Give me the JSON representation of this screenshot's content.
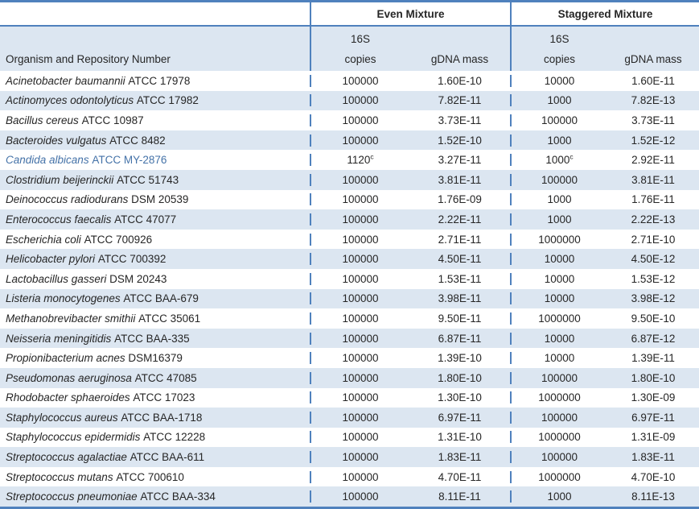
{
  "table": {
    "group_headers": {
      "even": "Even Mixture",
      "staggered": "Staggered Mixture"
    },
    "column_headers": {
      "organism": "Organism and Repository Number",
      "copies_line1": "16S",
      "copies_line2": "copies",
      "gdna_mass_even": "gDNA mass",
      "gdna_mass_staggered": "gDNA mass",
      "copies_line1_staggered": "16S",
      "copies_line2_staggered": "copies"
    },
    "colors": {
      "border_blue": "#4F81BD",
      "band_blue": "#DCE6F1",
      "highlight_text": "#4472A8",
      "text": "#262626"
    },
    "rows": [
      {
        "species": "Acinetobacter baumannii",
        "repository": "ATCC 17978",
        "even_copies": "100000",
        "even_copies_sup": "",
        "even_gdna": "1.60E-10",
        "stag_copies": "10000",
        "stag_copies_sup": "",
        "stag_gdna": "1.60E-11",
        "highlight": false
      },
      {
        "species": "Actinomyces odontolyticus",
        "repository": "ATCC 17982",
        "even_copies": "100000",
        "even_copies_sup": "",
        "even_gdna": "7.82E-11",
        "stag_copies": "1000",
        "stag_copies_sup": "",
        "stag_gdna": "7.82E-13",
        "highlight": false
      },
      {
        "species": "Bacillus cereus",
        "repository": "ATCC 10987",
        "even_copies": "100000",
        "even_copies_sup": "",
        "even_gdna": "3.73E-11",
        "stag_copies": "100000",
        "stag_copies_sup": "",
        "stag_gdna": "3.73E-11",
        "highlight": false
      },
      {
        "species": "Bacteroides vulgatus",
        "repository": "ATCC 8482",
        "even_copies": "100000",
        "even_copies_sup": "",
        "even_gdna": "1.52E-10",
        "stag_copies": "1000",
        "stag_copies_sup": "",
        "stag_gdna": "1.52E-12",
        "highlight": false
      },
      {
        "species": "Candida albicans",
        "repository": "ATCC MY-2876",
        "even_copies": "1120",
        "even_copies_sup": "c",
        "even_gdna": "3.27E-11",
        "stag_copies": "1000",
        "stag_copies_sup": "c",
        "stag_gdna": "2.92E-11",
        "highlight": true
      },
      {
        "species": "Clostridium beijerinckii",
        "repository": "ATCC 51743",
        "even_copies": "100000",
        "even_copies_sup": "",
        "even_gdna": "3.81E-11",
        "stag_copies": "100000",
        "stag_copies_sup": "",
        "stag_gdna": "3.81E-11",
        "highlight": false
      },
      {
        "species": "Deinococcus radiodurans",
        "repository": "DSM 20539",
        "even_copies": "100000",
        "even_copies_sup": "",
        "even_gdna": "1.76E-09",
        "stag_copies": "1000",
        "stag_copies_sup": "",
        "stag_gdna": "1.76E-11",
        "highlight": false
      },
      {
        "species": "Enterococcus faecalis",
        "repository": "ATCC 47077",
        "even_copies": "100000",
        "even_copies_sup": "",
        "even_gdna": "2.22E-11",
        "stag_copies": "1000",
        "stag_copies_sup": "",
        "stag_gdna": "2.22E-13",
        "highlight": false
      },
      {
        "species": "Escherichia coli",
        "repository": "ATCC 700926",
        "even_copies": "100000",
        "even_copies_sup": "",
        "even_gdna": "2.71E-11",
        "stag_copies": "1000000",
        "stag_copies_sup": "",
        "stag_gdna": "2.71E-10",
        "highlight": false
      },
      {
        "species": "Helicobacter pylori",
        "repository": "ATCC 700392",
        "even_copies": "100000",
        "even_copies_sup": "",
        "even_gdna": "4.50E-11",
        "stag_copies": "10000",
        "stag_copies_sup": "",
        "stag_gdna": "4.50E-12",
        "highlight": false
      },
      {
        "species": "Lactobacillus gasseri",
        "repository": "DSM 20243",
        "even_copies": "100000",
        "even_copies_sup": "",
        "even_gdna": "1.53E-11",
        "stag_copies": "10000",
        "stag_copies_sup": "",
        "stag_gdna": "1.53E-12",
        "highlight": false
      },
      {
        "species": "Listeria monocytogenes",
        "repository": "ATCC BAA-679",
        "even_copies": "100000",
        "even_copies_sup": "",
        "even_gdna": "3.98E-11",
        "stag_copies": "10000",
        "stag_copies_sup": "",
        "stag_gdna": "3.98E-12",
        "highlight": false
      },
      {
        "species": "Methanobrevibacter smithii",
        "repository": "ATCC 35061",
        "even_copies": "100000",
        "even_copies_sup": "",
        "even_gdna": "9.50E-11",
        "stag_copies": "1000000",
        "stag_copies_sup": "",
        "stag_gdna": "9.50E-10",
        "highlight": false
      },
      {
        "species": "Neisseria meningitidis",
        "repository": "ATCC BAA-335",
        "even_copies": "100000",
        "even_copies_sup": "",
        "even_gdna": "6.87E-11",
        "stag_copies": "10000",
        "stag_copies_sup": "",
        "stag_gdna": "6.87E-12",
        "highlight": false
      },
      {
        "species": "Propionibacterium acnes",
        "repository": "DSM16379",
        "even_copies": "100000",
        "even_copies_sup": "",
        "even_gdna": "1.39E-10",
        "stag_copies": "10000",
        "stag_copies_sup": "",
        "stag_gdna": "1.39E-11",
        "highlight": false
      },
      {
        "species": "Pseudomonas aeruginosa",
        "repository": "ATCC 47085",
        "even_copies": "100000",
        "even_copies_sup": "",
        "even_gdna": "1.80E-10",
        "stag_copies": "100000",
        "stag_copies_sup": "",
        "stag_gdna": "1.80E-10",
        "highlight": false
      },
      {
        "species": "Rhodobacter sphaeroides",
        "repository": "ATCC 17023",
        "even_copies": "100000",
        "even_copies_sup": "",
        "even_gdna": "1.30E-10",
        "stag_copies": "1000000",
        "stag_copies_sup": "",
        "stag_gdna": "1.30E-09",
        "highlight": false
      },
      {
        "species": "Staphylococcus aureus",
        "repository": "ATCC BAA-1718",
        "even_copies": "100000",
        "even_copies_sup": "",
        "even_gdna": "6.97E-11",
        "stag_copies": "100000",
        "stag_copies_sup": "",
        "stag_gdna": "6.97E-11",
        "highlight": false
      },
      {
        "species": "Staphylococcus epidermidis",
        "repository": "ATCC 12228",
        "even_copies": "100000",
        "even_copies_sup": "",
        "even_gdna": "1.31E-10",
        "stag_copies": "1000000",
        "stag_copies_sup": "",
        "stag_gdna": "1.31E-09",
        "highlight": false
      },
      {
        "species": "Streptococcus agalactiae",
        "repository": "ATCC BAA-611",
        "even_copies": "100000",
        "even_copies_sup": "",
        "even_gdna": "1.83E-11",
        "stag_copies": "100000",
        "stag_copies_sup": "",
        "stag_gdna": "1.83E-11",
        "highlight": false
      },
      {
        "species": "Streptococcus mutans",
        "repository": "ATCC 700610",
        "even_copies": "100000",
        "even_copies_sup": "",
        "even_gdna": "4.70E-11",
        "stag_copies": "1000000",
        "stag_copies_sup": "",
        "stag_gdna": "4.70E-10",
        "highlight": false
      },
      {
        "species": "Streptococcus pneumoniae",
        "repository": "ATCC BAA-334",
        "even_copies": "100000",
        "even_copies_sup": "",
        "even_gdna": "8.11E-11",
        "stag_copies": "1000",
        "stag_copies_sup": "",
        "stag_gdna": "8.11E-13",
        "highlight": false
      }
    ]
  }
}
